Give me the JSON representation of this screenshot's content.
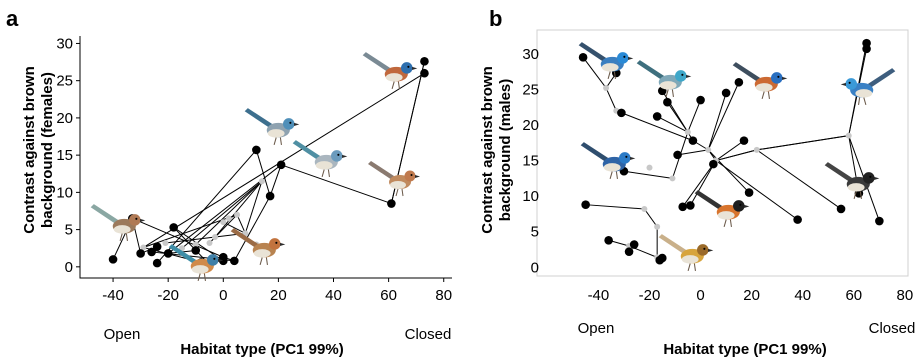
{
  "chart_data": [
    {
      "type": "scatter",
      "panel_label": "a",
      "xlabel": "Habitat type (PC1 99%)",
      "ylabel": "Contrast against brown background (females)",
      "ylabel_lines": [
        "Contrast against brown",
        "background (females)"
      ],
      "x_end_labels": {
        "left": "Open",
        "right": "Closed"
      },
      "xlim": [
        -52,
        83
      ],
      "ylim": [
        -1.5,
        31
      ],
      "xticks": [
        -40,
        -20,
        0,
        20,
        40,
        60,
        80
      ],
      "yticks": [
        0,
        5,
        10,
        15,
        20,
        25,
        30
      ],
      "tip_points": [
        {
          "x": -40,
          "y": 1
        },
        {
          "x": -33,
          "y": 6.5
        },
        {
          "x": -30,
          "y": 1.8
        },
        {
          "x": -26,
          "y": 2
        },
        {
          "x": -24,
          "y": 0.5
        },
        {
          "x": -24,
          "y": 2.7
        },
        {
          "x": -20,
          "y": 1.8
        },
        {
          "x": -18,
          "y": 5.3
        },
        {
          "x": -10,
          "y": 2.2
        },
        {
          "x": -8,
          "y": 0.6
        },
        {
          "x": -5,
          "y": 0.3
        },
        {
          "x": 0,
          "y": 0.8
        },
        {
          "x": 0,
          "y": 1.3
        },
        {
          "x": 4,
          "y": 0.8
        },
        {
          "x": 12,
          "y": 15.7
        },
        {
          "x": 17,
          "y": 9.5
        },
        {
          "x": 21,
          "y": 13.7
        },
        {
          "x": 61,
          "y": 8.5
        },
        {
          "x": 73,
          "y": 27.6
        },
        {
          "x": 73,
          "y": 26
        }
      ],
      "node_points": [
        {
          "x": -29,
          "y": 2.6
        },
        {
          "x": -21,
          "y": 3.2
        },
        {
          "x": -15,
          "y": 2.5
        },
        {
          "x": -10,
          "y": 3.0
        },
        {
          "x": -5,
          "y": 3.2
        },
        {
          "x": -3,
          "y": 4.0
        },
        {
          "x": 0,
          "y": 6.0
        },
        {
          "x": 2,
          "y": 6.5
        },
        {
          "x": 5,
          "y": 7.0
        },
        {
          "x": 8,
          "y": 4.5
        },
        {
          "x": 14,
          "y": 11.5
        },
        {
          "x": 12,
          "y": 3.0
        }
      ],
      "edges": [
        [
          0,
          1
        ],
        [
          1,
          2
        ],
        [
          1,
          12
        ],
        [
          3,
          13
        ],
        [
          2,
          5
        ],
        [
          4,
          14
        ],
        [
          6,
          16
        ],
        [
          8,
          6
        ],
        [
          9,
          20
        ],
        [
          10,
          7
        ],
        [
          11,
          7
        ],
        [
          12,
          13
        ],
        [
          13,
          15
        ],
        [
          14,
          15
        ],
        [
          15,
          16
        ],
        [
          16,
          17
        ],
        [
          17,
          18
        ],
        [
          18,
          17
        ],
        [
          19,
          20
        ],
        [
          20,
          28
        ],
        [
          21,
          29
        ],
        [
          22,
          30
        ],
        [
          23,
          30
        ],
        [
          24,
          28
        ],
        [
          25,
          30
        ],
        [
          26,
          29
        ],
        [
          27,
          28
        ],
        [
          28,
          29
        ],
        [
          29,
          30
        ]
      ]
    },
    {
      "type": "scatter",
      "panel_label": "b",
      "xlabel": "Habitat type (PC1 99%)",
      "ylabel": "Contrast against brown background (males)",
      "ylabel_lines": [
        "Contrast against brown",
        "background (males)"
      ],
      "x_end_labels": {
        "left": "Open",
        "right": "Closed"
      },
      "xlim": [
        -57,
        82
      ],
      "ylim": [
        -1.5,
        32.5
      ],
      "xticks": [
        -40,
        -20,
        0,
        20,
        40,
        60,
        80
      ],
      "yticks": [
        0,
        5,
        10,
        15,
        20,
        25,
        30
      ],
      "tip_points": [
        {
          "x": -46,
          "y": 29.5
        },
        {
          "x": -45,
          "y": 8.8
        },
        {
          "x": -36,
          "y": 3.8
        },
        {
          "x": -33,
          "y": 27.3
        },
        {
          "x": -31,
          "y": 21.7
        },
        {
          "x": -30,
          "y": 13.5
        },
        {
          "x": -28,
          "y": 2.2
        },
        {
          "x": -26,
          "y": 3.2
        },
        {
          "x": -17,
          "y": 21.2
        },
        {
          "x": -16,
          "y": 1.0
        },
        {
          "x": -15,
          "y": 1.3
        },
        {
          "x": -15,
          "y": 24.8
        },
        {
          "x": -13,
          "y": 23.2
        },
        {
          "x": -9,
          "y": 15.8
        },
        {
          "x": -7,
          "y": 8.5
        },
        {
          "x": -4,
          "y": 8.7
        },
        {
          "x": -3,
          "y": 17.8
        },
        {
          "x": 0,
          "y": 23.5
        },
        {
          "x": 5,
          "y": 14.5
        },
        {
          "x": 10,
          "y": 24.5
        },
        {
          "x": 15,
          "y": 26.0
        },
        {
          "x": 17,
          "y": 17.8
        },
        {
          "x": 19,
          "y": 10.5
        },
        {
          "x": 38,
          "y": 6.7
        },
        {
          "x": 55,
          "y": 8.2
        },
        {
          "x": 62,
          "y": 10.4
        },
        {
          "x": 65,
          "y": 31.5
        },
        {
          "x": 65,
          "y": 30.7
        },
        {
          "x": 70,
          "y": 6.5
        }
      ],
      "node_points": [
        {
          "x": -37,
          "y": 25.2
        },
        {
          "x": -33,
          "y": 22.0
        },
        {
          "x": -20,
          "y": 14.0
        },
        {
          "x": -22,
          "y": 8.2
        },
        {
          "x": -17,
          "y": 5.7
        },
        {
          "x": -11,
          "y": 12.5
        },
        {
          "x": -5,
          "y": 19.0
        },
        {
          "x": -3,
          "y": 17.8
        },
        {
          "x": 3,
          "y": 16.5
        },
        {
          "x": 6,
          "y": 15.0
        },
        {
          "x": 22,
          "y": 16.5
        },
        {
          "x": 58,
          "y": 18.5
        },
        {
          "x": -17,
          "y": 1.4
        },
        {
          "x": -28,
          "y": 3.0
        }
      ],
      "edges": [
        [
          0,
          29
        ],
        [
          3,
          29
        ],
        [
          29,
          30
        ],
        [
          4,
          30
        ],
        [
          30,
          36
        ],
        [
          1,
          32
        ],
        [
          32,
          33
        ],
        [
          33,
          41
        ],
        [
          41,
          42
        ],
        [
          2,
          42
        ],
        [
          6,
          42
        ],
        [
          7,
          42
        ],
        [
          9,
          41
        ],
        [
          10,
          41
        ],
        [
          5,
          34
        ],
        [
          34,
          35
        ],
        [
          35,
          36
        ],
        [
          36,
          37
        ],
        [
          8,
          35
        ],
        [
          11,
          35
        ],
        [
          12,
          35
        ],
        [
          13,
          37
        ],
        [
          16,
          36
        ],
        [
          17,
          35
        ],
        [
          19,
          37
        ],
        [
          20,
          37
        ],
        [
          14,
          38
        ],
        [
          15,
          38
        ],
        [
          37,
          38
        ],
        [
          38,
          39
        ],
        [
          18,
          38
        ],
        [
          39,
          39
        ],
        [
          38,
          39
        ],
        [
          39,
          40
        ],
        [
          21,
          38
        ],
        [
          22,
          37
        ],
        [
          23,
          38
        ],
        [
          40,
          40
        ],
        [
          40,
          39
        ],
        [
          24,
          39
        ],
        [
          25,
          40
        ],
        [
          26,
          40
        ],
        [
          27,
          40
        ],
        [
          28,
          40
        ]
      ]
    }
  ]
}
